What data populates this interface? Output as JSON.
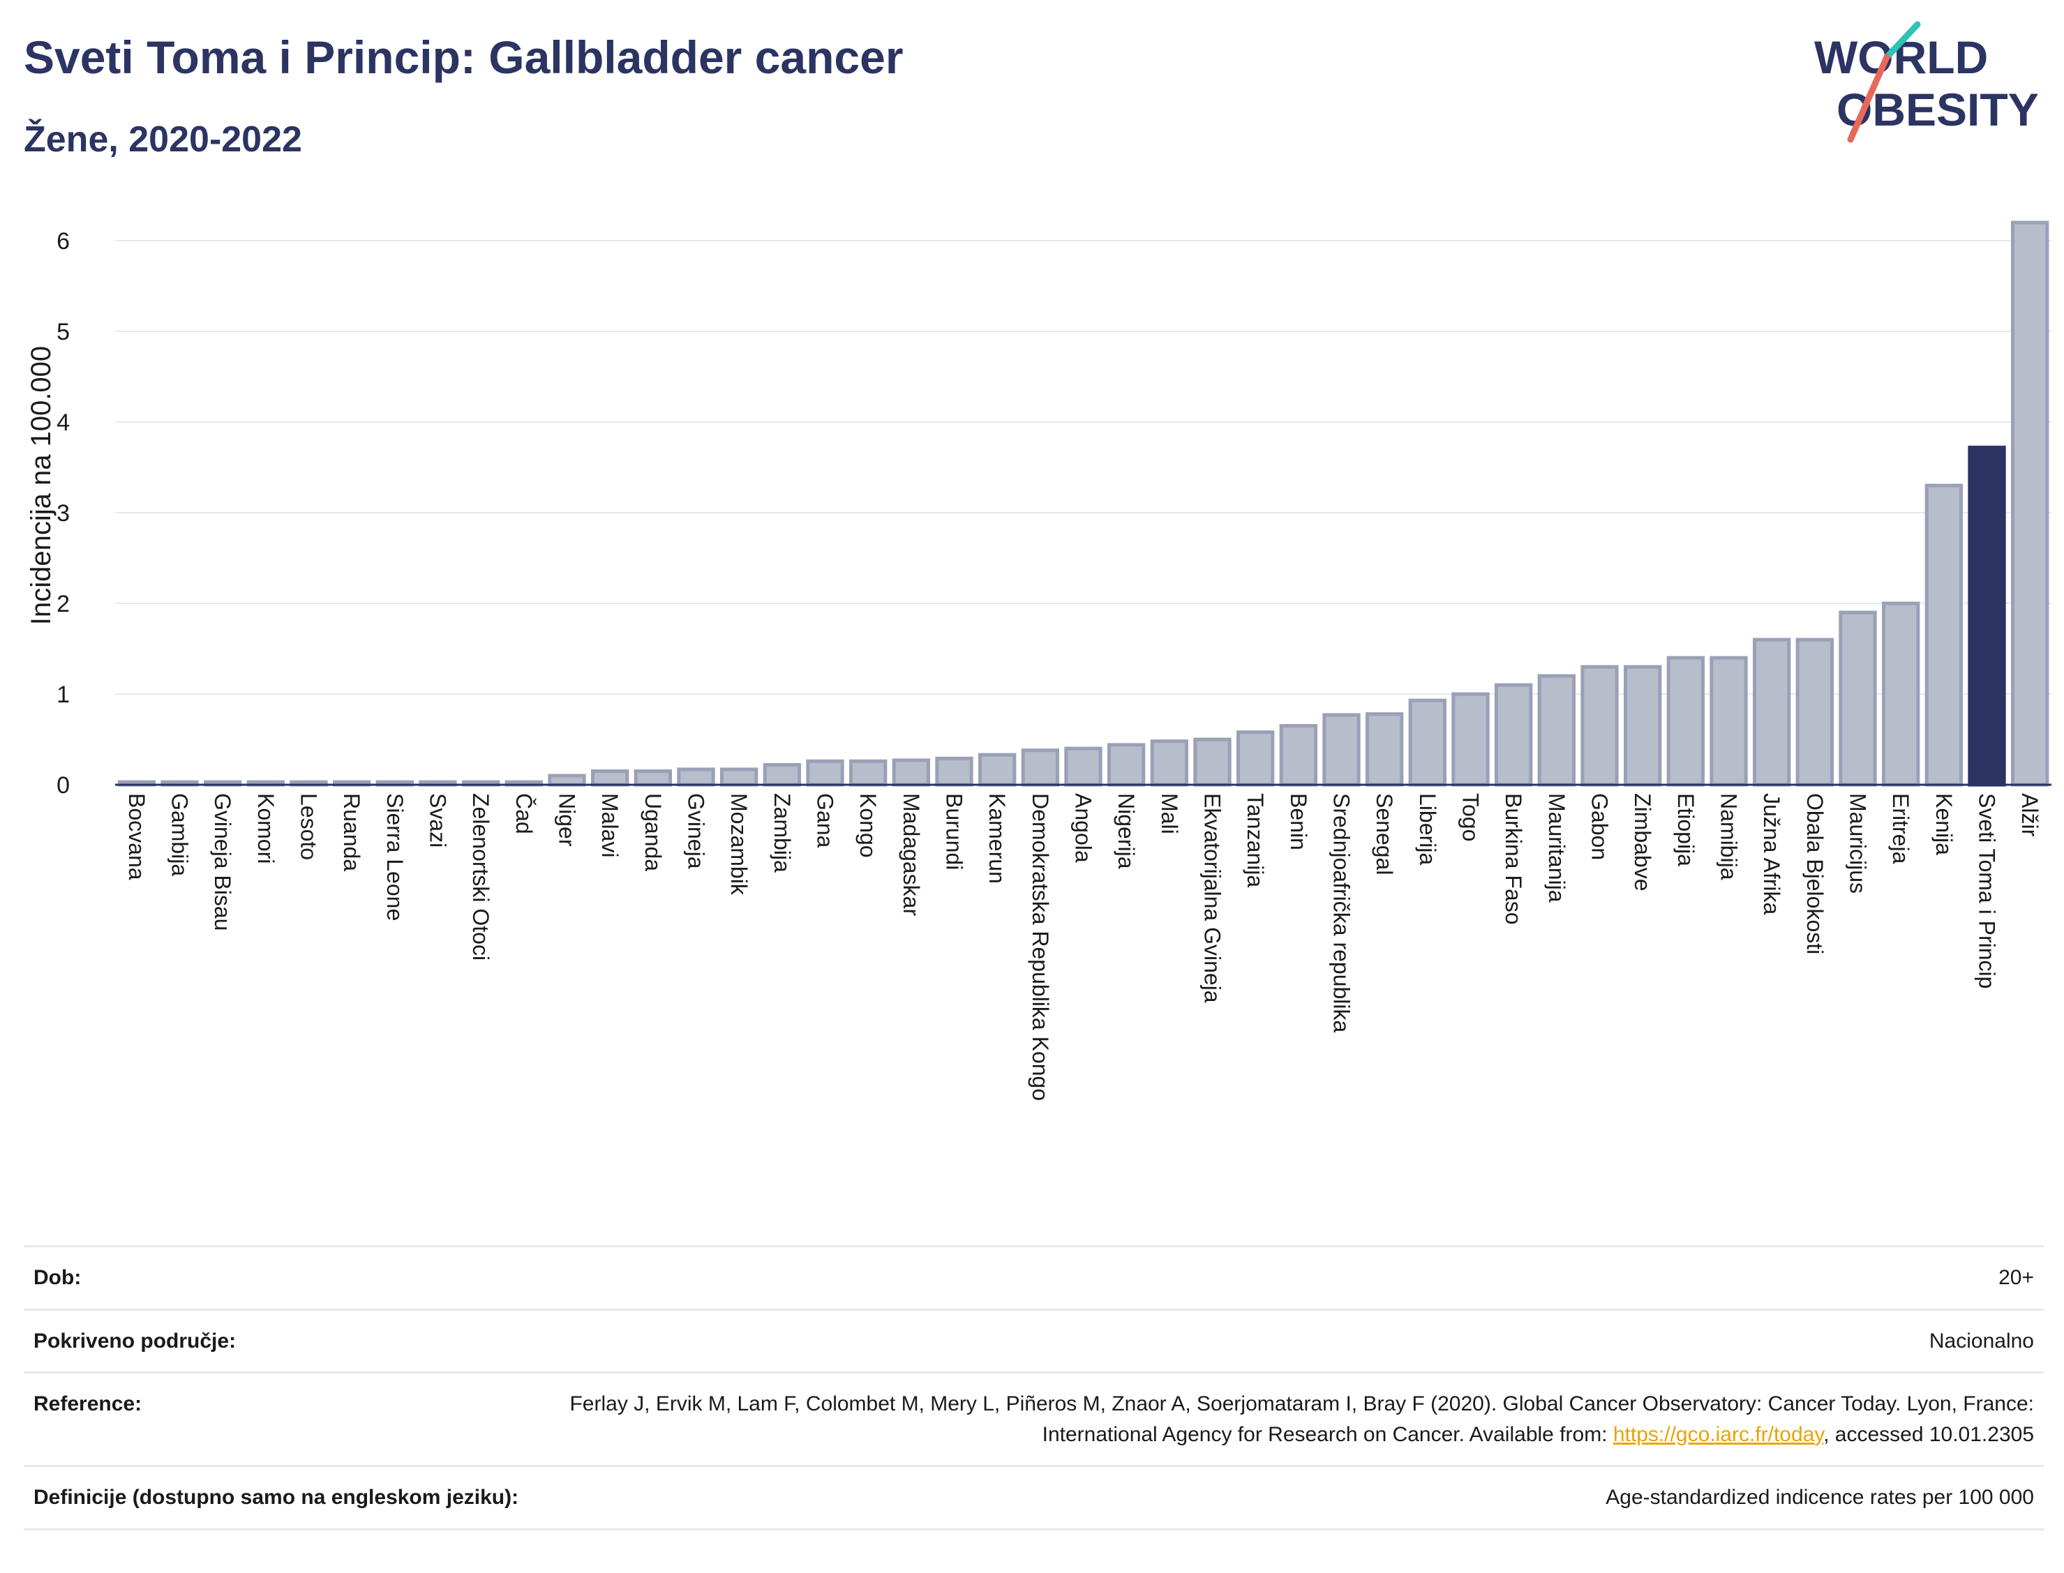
{
  "header": {
    "title": "Sveti Toma i Princip: Gallbladder cancer",
    "subtitle": "Žene, 2020-2022"
  },
  "logo": {
    "line1": "WORLD",
    "line2": "OBESITY",
    "accent_colors": [
      "#2ec4b6",
      "#e8685a"
    ]
  },
  "chart_data": {
    "type": "bar",
    "ylabel": "Incidencija na 100.000",
    "ylim": [
      0,
      6.5
    ],
    "yticks": [
      0,
      1,
      2,
      3,
      4,
      5,
      6
    ],
    "highlight": "Sveti Toma i Princip",
    "colors": {
      "bar": "#b8bdcc",
      "bar_stroke": "#9aa0b6",
      "highlight": "#2b3462"
    },
    "categories": [
      "Bocvana",
      "Gambija",
      "Gvineja Bisau",
      "Komori",
      "Lesoto",
      "Ruanda",
      "Sierra Leone",
      "Svazi",
      "Zelenortski Otoci",
      "Čad",
      "Niger",
      "Malavi",
      "Uganda",
      "Gvineja",
      "Mozambik",
      "Zambija",
      "Gana",
      "Kongo",
      "Madagaskar",
      "Burundi",
      "Kamerun",
      "Demokratska Republika Kongo",
      "Angola",
      "Nigerija",
      "Mali",
      "Ekvatorijalna Gvineja",
      "Tanzanija",
      "Benin",
      "Srednjoafrička republika",
      "Senegal",
      "Liberija",
      "Togo",
      "Burkina Faso",
      "Mauritanija",
      "Gabon",
      "Zimbabve",
      "Etiopija",
      "Namibija",
      "Južna Afrika",
      "Obala Bjelokosti",
      "Mauricijus",
      "Eritreja",
      "Kenija",
      "Sveti Toma i Princip",
      "Alžir"
    ],
    "values": [
      0.03,
      0.03,
      0.03,
      0.03,
      0.03,
      0.03,
      0.03,
      0.03,
      0.03,
      0.03,
      0.1,
      0.15,
      0.15,
      0.17,
      0.17,
      0.22,
      0.26,
      0.26,
      0.27,
      0.29,
      0.33,
      0.38,
      0.4,
      0.44,
      0.48,
      0.5,
      0.58,
      0.65,
      0.77,
      0.78,
      0.93,
      1.0,
      1.1,
      1.2,
      1.3,
      1.3,
      1.4,
      1.4,
      1.6,
      1.6,
      1.9,
      2.0,
      3.3,
      3.72,
      6.2
    ]
  },
  "info": {
    "rows": [
      {
        "label": "Dob:",
        "value": "20+"
      },
      {
        "label": "Pokriveno područje:",
        "value": "Nacionalno"
      },
      {
        "label": "Reference:",
        "value_pre": "Ferlay J, Ervik M, Lam F, Colombet M, Mery L, Piñeros M, Znaor A, Soerjomataram I, Bray F (2020). Global Cancer Observatory: Cancer Today. Lyon, France: International Agency for Research on Cancer. Available from: ",
        "link": "https://gco.iarc.fr/today",
        "value_post": ", accessed 10.01.2305"
      },
      {
        "label": "Definicije (dostupno samo na engleskom jeziku):",
        "value": "Age-standardized indicence rates per 100 000"
      }
    ]
  }
}
